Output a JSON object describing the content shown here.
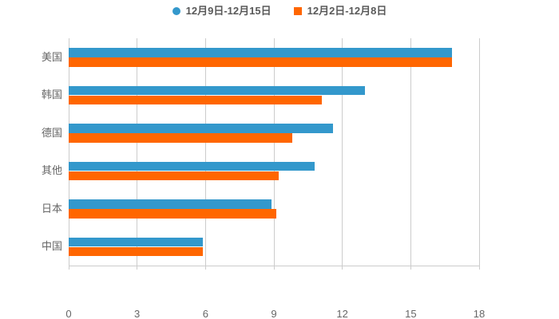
{
  "legend": {
    "items": [
      {
        "label": "12月9日-12月15日",
        "color": "#3398CC",
        "shape": "circle"
      },
      {
        "label": "12月2日-12月8日",
        "color": "#FF6600",
        "shape": "square"
      }
    ]
  },
  "chart_data": {
    "type": "bar",
    "orientation": "horizontal",
    "title": "",
    "xlabel": "",
    "ylabel": "",
    "categories": [
      "美国",
      "韩国",
      "德国",
      "其他",
      "日本",
      "中国"
    ],
    "series": [
      {
        "name": "12月9日-12月15日",
        "color": "#3398CC",
        "values": [
          16.8,
          13.0,
          11.6,
          10.8,
          8.9,
          5.9
        ]
      },
      {
        "name": "12月2日-12月8日",
        "color": "#FF6600",
        "values": [
          16.8,
          11.1,
          9.8,
          9.2,
          9.1,
          5.9
        ]
      }
    ],
    "xlim": [
      0,
      18
    ],
    "xticks": [
      0,
      3,
      6,
      9,
      12,
      15,
      18
    ],
    "grid": true,
    "legend_position": "top",
    "colors": {
      "grid_line": "#cccccc",
      "axis_text": "#666666",
      "legend_text": "#595959",
      "background": "#ffffff"
    }
  }
}
